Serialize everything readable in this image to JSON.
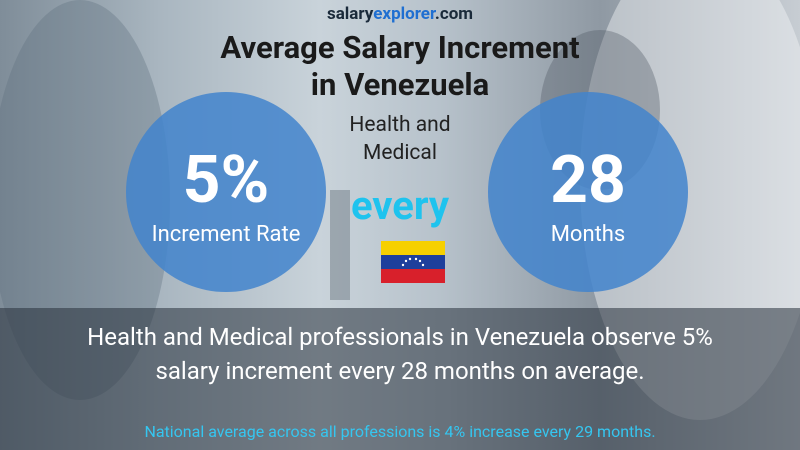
{
  "brand": [
    "salary",
    "explorer",
    ".com"
  ],
  "title": [
    "Average Salary Increment",
    "in Venezuela"
  ],
  "subtitle": [
    "Health and",
    "Medical"
  ],
  "increment": {
    "value": "5%",
    "label": "Increment Rate"
  },
  "connector": "every",
  "period": {
    "value": "28",
    "label": "Months"
  },
  "description": [
    "Health and Medical professionals in Venezuela observe 5%",
    "salary increment every 28 months on average."
  ],
  "footnote": "National average across all professions is 4% increase every 29 months."
}
